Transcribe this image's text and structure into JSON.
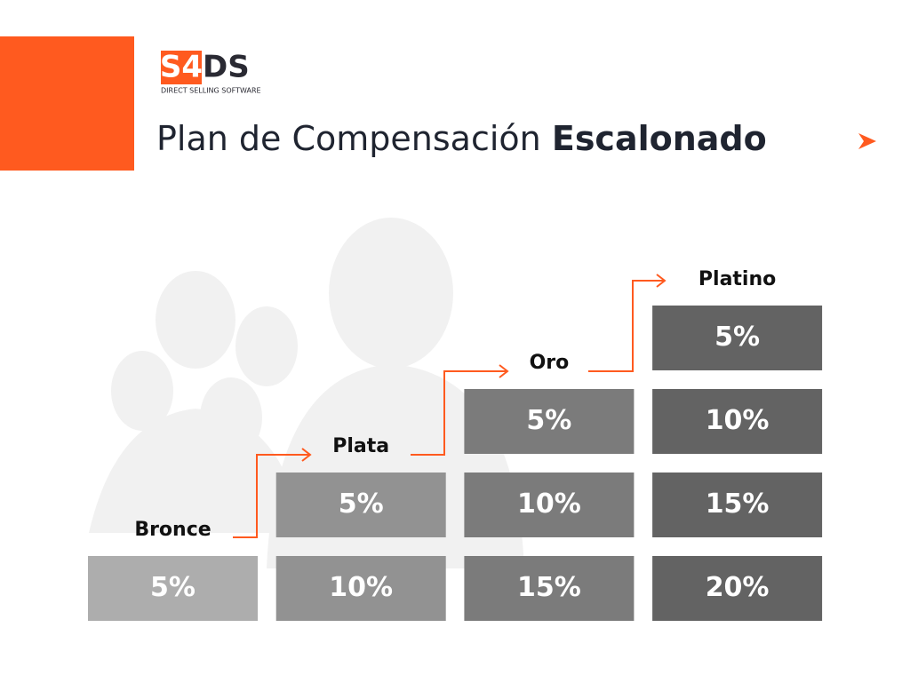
{
  "logo": {
    "left": "S4",
    "right": "DS",
    "tagline": "DIRECT SELLING SOFTWARE"
  },
  "title": {
    "regular": "Plan de Compensación",
    "bold": "Escalonado"
  },
  "tiers": [
    {
      "name": "Bronce",
      "cells": [
        "5%"
      ]
    },
    {
      "name": "Plata",
      "cells": [
        "5%",
        "10%"
      ]
    },
    {
      "name": "Oro",
      "cells": [
        "5%",
        "10%",
        "15%"
      ]
    },
    {
      "name": "Platino",
      "cells": [
        "5%",
        "10%",
        "15%",
        "20%"
      ]
    }
  ]
}
